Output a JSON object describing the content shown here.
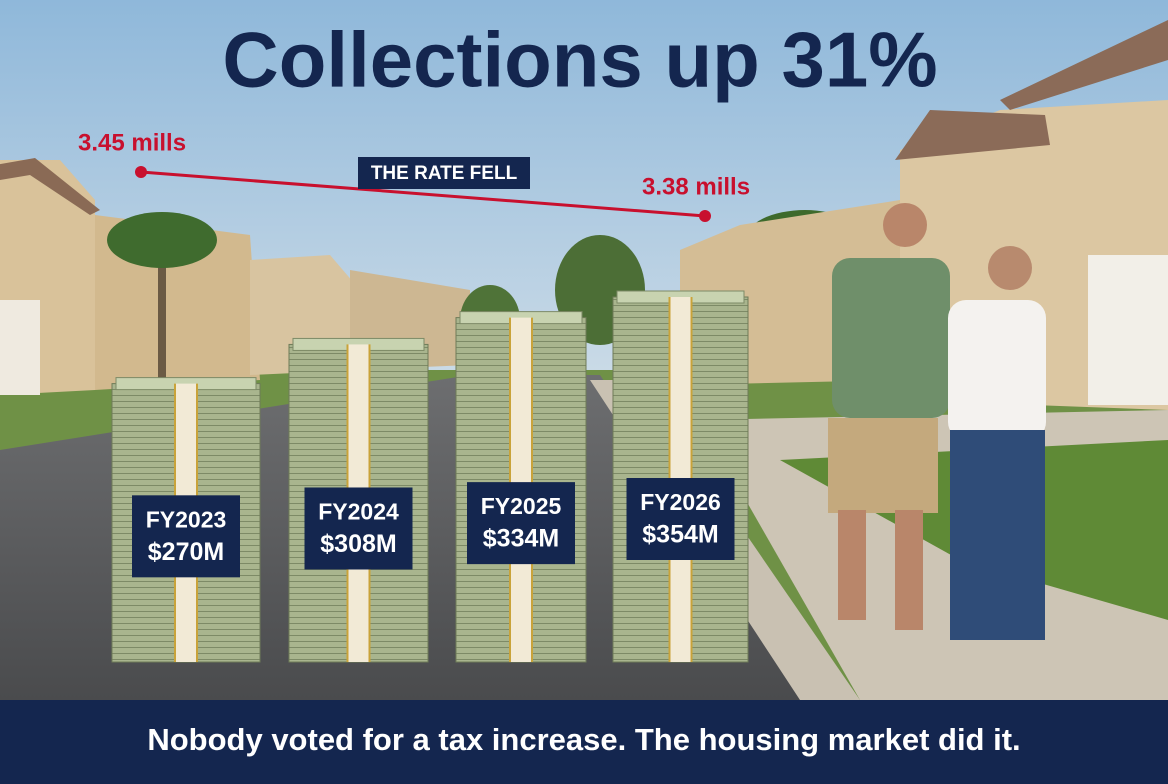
{
  "chart_data": {
    "type": "bar",
    "title": "Collections up 31%",
    "categories": [
      "FY2023",
      "FY2024",
      "FY2025",
      "FY2026"
    ],
    "values": [
      270,
      308,
      334,
      354
    ],
    "value_labels": [
      "$270M",
      "$308M",
      "$334M",
      "$354M"
    ],
    "rate": {
      "values": [
        3.45,
        3.38
      ],
      "value_labels": [
        "3.45 mills",
        "3.38 mills"
      ],
      "annotation": "THE RATE FELL",
      "color": "#c8102e"
    },
    "footer": "Nobody voted for a tax increase. The housing market did it."
  }
}
